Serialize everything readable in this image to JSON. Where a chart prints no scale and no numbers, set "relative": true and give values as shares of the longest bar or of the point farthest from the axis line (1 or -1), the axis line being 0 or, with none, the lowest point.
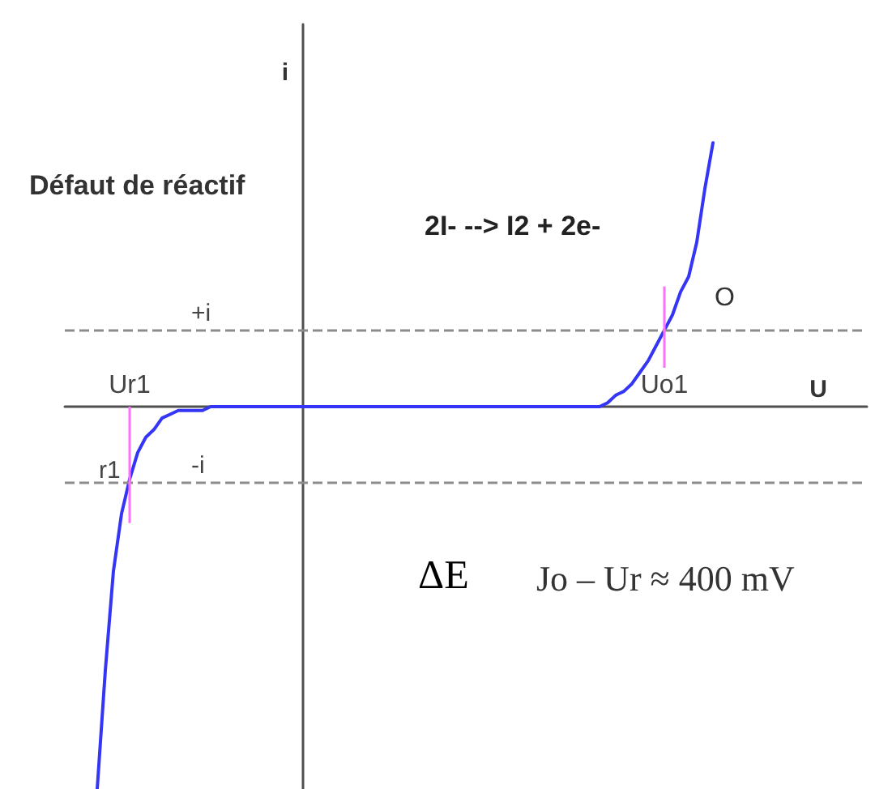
{
  "chart_data": {
    "type": "line",
    "title": "Défaut de réactif",
    "xlabel": "U",
    "ylabel": "i",
    "relative": true,
    "marker": "none",
    "line_style": "solid",
    "categories": [
      null,
      null,
      null,
      null,
      null,
      null,
      null,
      null,
      "Ur1",
      null,
      null,
      null,
      null,
      null,
      null,
      null,
      null,
      null,
      null,
      null,
      null,
      null,
      null,
      null,
      null,
      null,
      null,
      null,
      null,
      null,
      null,
      null,
      null,
      null,
      null,
      null,
      null,
      null,
      null,
      null,
      null,
      null,
      null,
      null,
      null,
      null,
      null,
      null,
      null,
      null,
      null,
      null,
      null,
      null,
      null,
      null,
      null,
      null,
      null,
      null,
      null,
      null,
      null,
      null,
      null,
      null,
      null,
      null,
      null,
      null,
      null,
      null,
      null,
      null,
      "Uo1",
      null,
      null,
      null,
      null,
      null,
      null,
      null,
      null,
      null,
      null,
      null,
      null,
      null,
      null,
      null,
      null,
      null,
      null,
      null,
      null,
      null,
      null,
      null,
      null,
      null
    ],
    "series": [
      {
        "color": "#3535f5",
        "values": [
          null,
          null,
          null,
          null,
          -1,
          -0.69,
          -0.43,
          -0.28,
          -0.19,
          -0.12,
          -0.08,
          -0.06,
          -0.03,
          -0.02,
          -0.01,
          -0.01,
          -0.01,
          -0.01,
          0,
          0,
          0,
          0,
          0,
          0,
          0,
          0,
          0,
          0,
          0,
          0,
          0,
          0,
          0,
          0,
          0,
          0,
          0,
          0,
          0,
          0,
          0,
          0,
          0,
          0,
          0,
          0,
          0,
          0,
          0,
          0,
          0,
          0,
          0,
          0,
          0,
          0,
          0,
          0,
          0,
          0,
          0,
          0,
          0,
          0,
          0,
          0,
          0,
          0.01,
          0.03,
          0.04,
          0.06,
          0.09,
          0.12,
          0.16,
          0.2,
          0.24,
          0.3,
          0.34,
          0.43,
          0.57,
          0.69,
          null,
          null,
          null,
          null,
          null,
          null,
          null,
          null,
          null,
          null,
          null,
          null,
          null,
          null,
          null,
          null,
          null,
          null,
          null
        ]
      }
    ],
    "ref_lines": [
      {
        "axis": "y",
        "value": 0.2,
        "label": "+i",
        "color": "#8c8c8c",
        "line_style": "dashed"
      },
      {
        "axis": "y",
        "value": -0.2,
        "label": "-i",
        "color": "#8c8c8c",
        "line_style": "dashed"
      },
      {
        "axis": "x",
        "value": "Ur1",
        "color": "#ff70ff"
      },
      {
        "axis": "x",
        "value": "Uo1",
        "color": "#ff70ff"
      }
    ],
    "annotations": [
      "2I- --> I2 + 2e-",
      "O",
      "r1",
      "ΔE",
      "Jo – Ur ≈ 400 mV"
    ]
  }
}
